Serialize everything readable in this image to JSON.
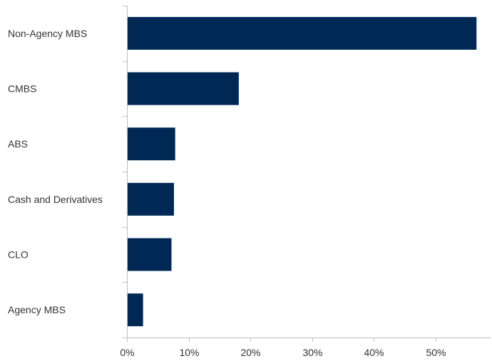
{
  "chart_data": {
    "type": "bar",
    "orientation": "horizontal",
    "categories": [
      "Non-Agency MBS",
      "CMBS",
      "ABS",
      "Cash and Derivatives",
      "CLO",
      "Agency MBS"
    ],
    "values": [
      56.5,
      18.0,
      7.7,
      7.5,
      7.1,
      2.5
    ],
    "x_ticks": [
      "0%",
      "10%",
      "20%",
      "30%",
      "40%",
      "50%"
    ],
    "x_tick_values": [
      0,
      10,
      20,
      30,
      40,
      50
    ],
    "xlim": [
      0,
      60
    ],
    "title": "",
    "xlabel": "",
    "ylabel": "",
    "grid": false,
    "legend": "none",
    "bar_color": "#002855"
  }
}
